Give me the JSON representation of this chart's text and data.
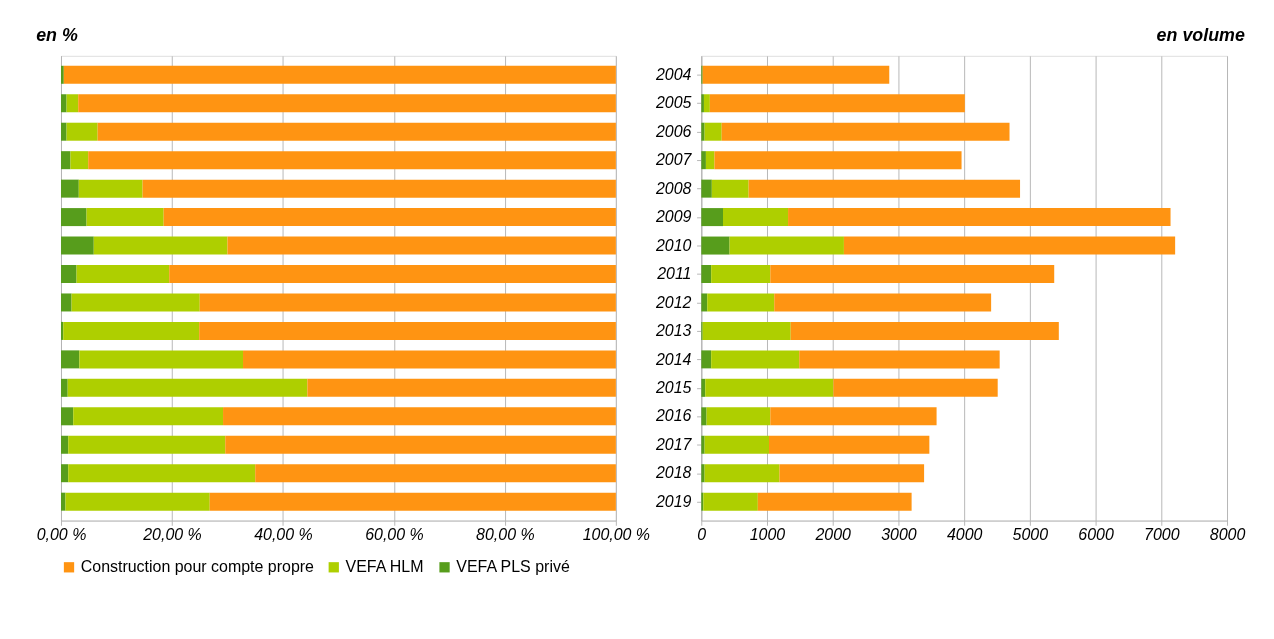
{
  "chart_data": [
    {
      "type": "bar",
      "orientation": "horizontal",
      "stacked": true,
      "title": "en %",
      "categories": [
        "2004",
        "2005",
        "2006",
        "2007",
        "2008",
        "2009",
        "2010",
        "2011",
        "2012",
        "2013",
        "2014",
        "2015",
        "2016",
        "2017",
        "2018",
        "2019"
      ],
      "series": [
        {
          "name": "VEFA PLS privé",
          "color": "#579d1c",
          "values": [
            0.5,
            1.0,
            1.0,
            1.7,
            3.2,
            4.6,
            5.9,
            2.8,
            1.9,
            0.4,
            3.3,
            1.2,
            2.2,
            1.3,
            1.3,
            0.8
          ]
        },
        {
          "name": "VEFA HLM",
          "color": "#aecf00",
          "values": [
            0,
            2.1,
            5.6,
            3.2,
            11.5,
            13.9,
            24.1,
            16.7,
            23.1,
            24.5,
            29.5,
            43.2,
            27.0,
            28.3,
            33.7,
            26.0
          ]
        },
        {
          "name": "Construction pour compte propre",
          "color": "#ff9412",
          "values": [
            99.5,
            96.9,
            93.4,
            95.1,
            85.3,
            81.5,
            70.0,
            80.5,
            75.0,
            75.1,
            67.2,
            55.6,
            70.8,
            70.4,
            65.0,
            73.2
          ]
        }
      ],
      "xlim": [
        0,
        100
      ],
      "xticks": [
        {
          "value": 0,
          "label": "0,00 %"
        },
        {
          "value": 20,
          "label": "20,00 %"
        },
        {
          "value": 40,
          "label": "40,00 %"
        },
        {
          "value": 60,
          "label": "60,00 %"
        },
        {
          "value": 80,
          "label": "80,00 %"
        },
        {
          "value": 100,
          "label": "100,00 %"
        }
      ],
      "grid": "x",
      "legend": "bottom",
      "tick_labels": "x"
    },
    {
      "type": "bar",
      "orientation": "horizontal",
      "stacked": true,
      "title": "en volume",
      "categories": [
        "2004",
        "2005",
        "2006",
        "2007",
        "2008",
        "2009",
        "2010",
        "2011",
        "2012",
        "2013",
        "2014",
        "2015",
        "2016",
        "2017",
        "2018",
        "2019"
      ],
      "series": [
        {
          "color": "#579d1c",
          "values": [
            20,
            40,
            50,
            70,
            160,
            330,
            430,
            150,
            90,
            20,
            150,
            60,
            80,
            50,
            50,
            30
          ]
        },
        {
          "color": "#aecf00",
          "values": [
            0,
            90,
            260,
            130,
            560,
            990,
            1740,
            900,
            1020,
            1340,
            1340,
            1950,
            970,
            980,
            1140,
            830
          ]
        },
        {
          "color": "#ff9412",
          "values": [
            2840,
            3880,
            4380,
            3760,
            4130,
            5820,
            5040,
            4320,
            3300,
            4080,
            3050,
            2500,
            2530,
            2440,
            2200,
            2340
          ]
        }
      ],
      "xlim": [
        0,
        8000
      ],
      "xticks": [
        0,
        1000,
        2000,
        3000,
        4000,
        5000,
        6000,
        7000,
        8000
      ],
      "grid": "x"
    }
  ]
}
